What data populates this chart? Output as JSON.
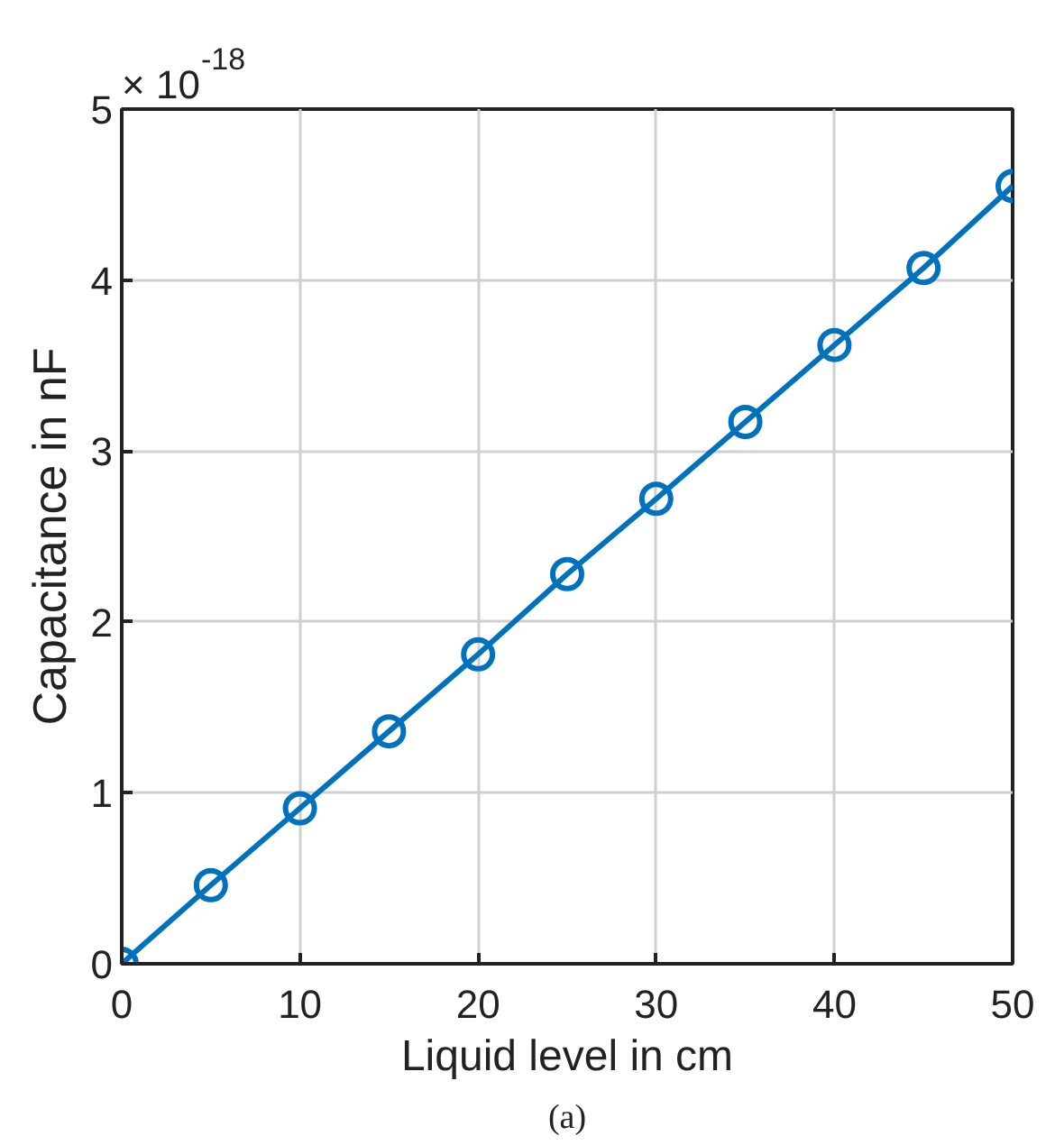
{
  "chart_data": {
    "type": "line",
    "xlabel": "Liquid level in cm",
    "ylabel": "Capacitance in nF",
    "annotations": [
      "× 10$^{-18}$",
      "(a)"
    ],
    "x": [
      0,
      5,
      10,
      15,
      20,
      25,
      30,
      35,
      40,
      45,
      50
    ],
    "series": [
      {
        "color": "#0072bd",
        "values": [
          0,
          0.46,
          0.91,
          1.36,
          1.81,
          2.28,
          2.72,
          3.17,
          3.62,
          4.07,
          4.55
        ]
      }
    ],
    "xlim": [
      0,
      50
    ],
    "ylim": [
      0,
      5
    ],
    "xticks": [
      0,
      10,
      20,
      30,
      40,
      50
    ],
    "yticks": [
      0,
      1,
      2,
      3,
      4,
      5
    ],
    "grid": true,
    "marker": "circle",
    "line_style": "solid"
  }
}
